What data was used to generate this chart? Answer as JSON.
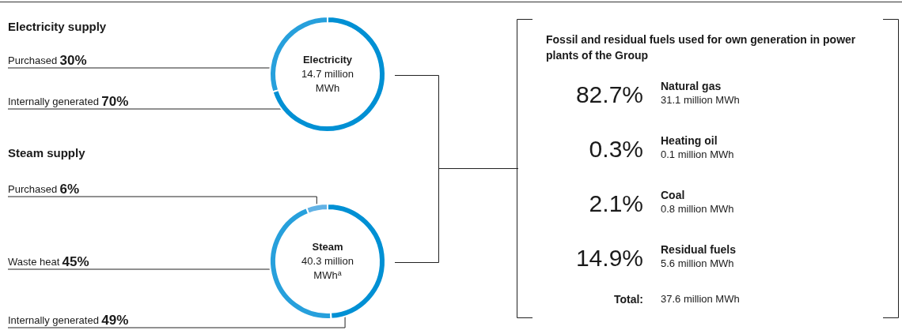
{
  "chart_data": [
    {
      "type": "donut",
      "title": "Electricity supply",
      "categories": [
        "Purchased",
        "Internally generated"
      ],
      "values": [
        30,
        70
      ],
      "value_labels": [
        "30%",
        "70%"
      ],
      "colors": [
        "#27a0dc",
        "#0090d4"
      ],
      "annotations": [
        "Electricity",
        "14.7 million MWh"
      ]
    },
    {
      "type": "donut",
      "title": "Steam supply",
      "categories": [
        "Purchased",
        "Waste heat",
        "Internally generated"
      ],
      "values": [
        6,
        45,
        49
      ],
      "value_labels": [
        "6%",
        "45%",
        "49%"
      ],
      "colors": [
        "#62b2e5",
        "#27a0dc",
        "#0090d4"
      ],
      "annotations": [
        "Steam",
        "40.3 million MWh$^{a}$"
      ]
    },
    {
      "type": "other",
      "title": "Fossil and residual fuels used for own generation in power plants of the Group",
      "categories": [
        "Natural gas",
        "Heating oil",
        "Coal",
        "Residual fuels"
      ],
      "value_labels": [
        "82.7%",
        "0.3%",
        "2.1%",
        "14.9%"
      ],
      "annotations": [
        "31.1 million MWh",
        "0.1 million MWh",
        "0.8 million MWh",
        "5.6 million MWh",
        "Total:",
        "37.6 million MWh"
      ]
    }
  ]
}
